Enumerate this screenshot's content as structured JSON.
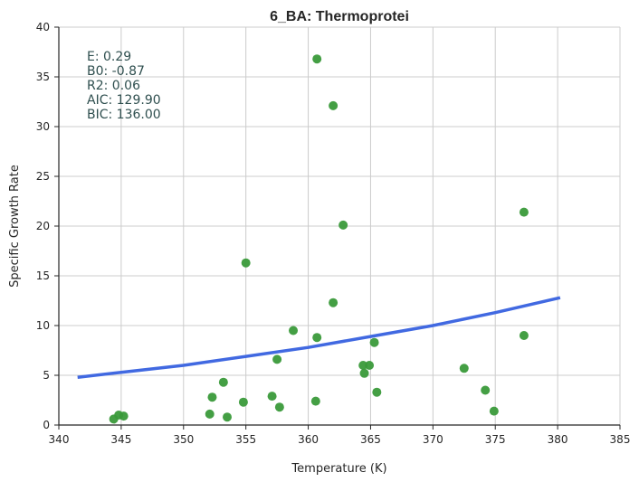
{
  "chart_data": {
    "type": "scatter",
    "title": "6_BA: Thermoprotei",
    "xlabel": "Temperature (K)",
    "ylabel": "Specific Growth Rate",
    "xlim": [
      340,
      385
    ],
    "ylim": [
      0,
      40
    ],
    "xticks": [
      340,
      345,
      350,
      355,
      360,
      365,
      370,
      375,
      380,
      385
    ],
    "yticks": [
      0,
      5,
      10,
      15,
      20,
      25,
      30,
      35,
      40
    ],
    "grid": true,
    "annotations": [
      "E:  0.29",
      "B0:  -0.87",
      "R2:  0.06",
      "AIC: 129.90",
      "BIC: 136.00"
    ],
    "points_color": "#3a9a3a",
    "fit_color": "#4169e1",
    "points": [
      {
        "x": 344.4,
        "y": 0.6
      },
      {
        "x": 344.8,
        "y": 1.0
      },
      {
        "x": 345.2,
        "y": 0.9
      },
      {
        "x": 352.1,
        "y": 1.1
      },
      {
        "x": 352.3,
        "y": 2.8
      },
      {
        "x": 353.2,
        "y": 4.3
      },
      {
        "x": 353.5,
        "y": 0.8
      },
      {
        "x": 354.8,
        "y": 2.3
      },
      {
        "x": 355.0,
        "y": 16.3
      },
      {
        "x": 357.1,
        "y": 2.9
      },
      {
        "x": 357.5,
        "y": 6.6
      },
      {
        "x": 357.7,
        "y": 1.8
      },
      {
        "x": 358.8,
        "y": 9.5
      },
      {
        "x": 360.6,
        "y": 2.4
      },
      {
        "x": 360.7,
        "y": 36.8
      },
      {
        "x": 360.7,
        "y": 8.8
      },
      {
        "x": 362.0,
        "y": 32.1
      },
      {
        "x": 362.0,
        "y": 12.3
      },
      {
        "x": 362.8,
        "y": 20.1
      },
      {
        "x": 364.4,
        "y": 6.0
      },
      {
        "x": 364.5,
        "y": 5.2
      },
      {
        "x": 364.9,
        "y": 6.0
      },
      {
        "x": 365.3,
        "y": 8.3
      },
      {
        "x": 365.5,
        "y": 3.3
      },
      {
        "x": 372.5,
        "y": 5.7
      },
      {
        "x": 374.2,
        "y": 3.5
      },
      {
        "x": 374.9,
        "y": 1.4
      },
      {
        "x": 377.3,
        "y": 21.4
      },
      {
        "x": 377.3,
        "y": 9.0
      }
    ],
    "fit_line": [
      {
        "x": 341.5,
        "y": 4.8
      },
      {
        "x": 345.0,
        "y": 5.3
      },
      {
        "x": 350.0,
        "y": 6.0
      },
      {
        "x": 355.0,
        "y": 6.9
      },
      {
        "x": 360.0,
        "y": 7.8
      },
      {
        "x": 365.0,
        "y": 8.9
      },
      {
        "x": 370.0,
        "y": 10.0
      },
      {
        "x": 375.0,
        "y": 11.3
      },
      {
        "x": 380.2,
        "y": 12.8
      }
    ]
  }
}
